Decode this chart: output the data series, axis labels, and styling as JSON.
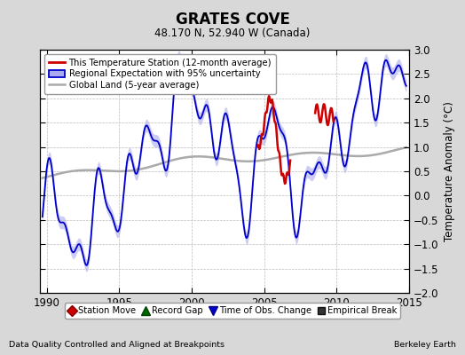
{
  "title": "GRATES COVE",
  "subtitle": "48.170 N, 52.940 W (Canada)",
  "ylabel": "Temperature Anomaly (°C)",
  "xlabel_left": "Data Quality Controlled and Aligned at Breakpoints",
  "xlabel_right": "Berkeley Earth",
  "ylim": [
    -2,
    3
  ],
  "xlim": [
    1989.5,
    2015.0
  ],
  "yticks": [
    -2,
    -1.5,
    -1,
    -0.5,
    0,
    0.5,
    1,
    1.5,
    2,
    2.5,
    3
  ],
  "xticks": [
    1990,
    1995,
    2000,
    2005,
    2010,
    2015
  ],
  "bg_color": "#d8d8d8",
  "plot_bg_color": "#ffffff",
  "blue_line_color": "#0000cc",
  "blue_fill_color": "#aaaaee",
  "red_line_color": "#cc0000",
  "gray_line_color": "#aaaaaa",
  "legend1_labels": [
    "This Temperature Station (12-month average)",
    "Regional Expectation with 95% uncertainty",
    "Global Land (5-year average)"
  ],
  "legend2_labels": [
    "Station Move",
    "Record Gap",
    "Time of Obs. Change",
    "Empirical Break"
  ],
  "legend2_colors": [
    "#cc0000",
    "#006600",
    "#0000cc",
    "#333333"
  ],
  "legend2_markers": [
    "D",
    "^",
    "v",
    "s"
  ]
}
